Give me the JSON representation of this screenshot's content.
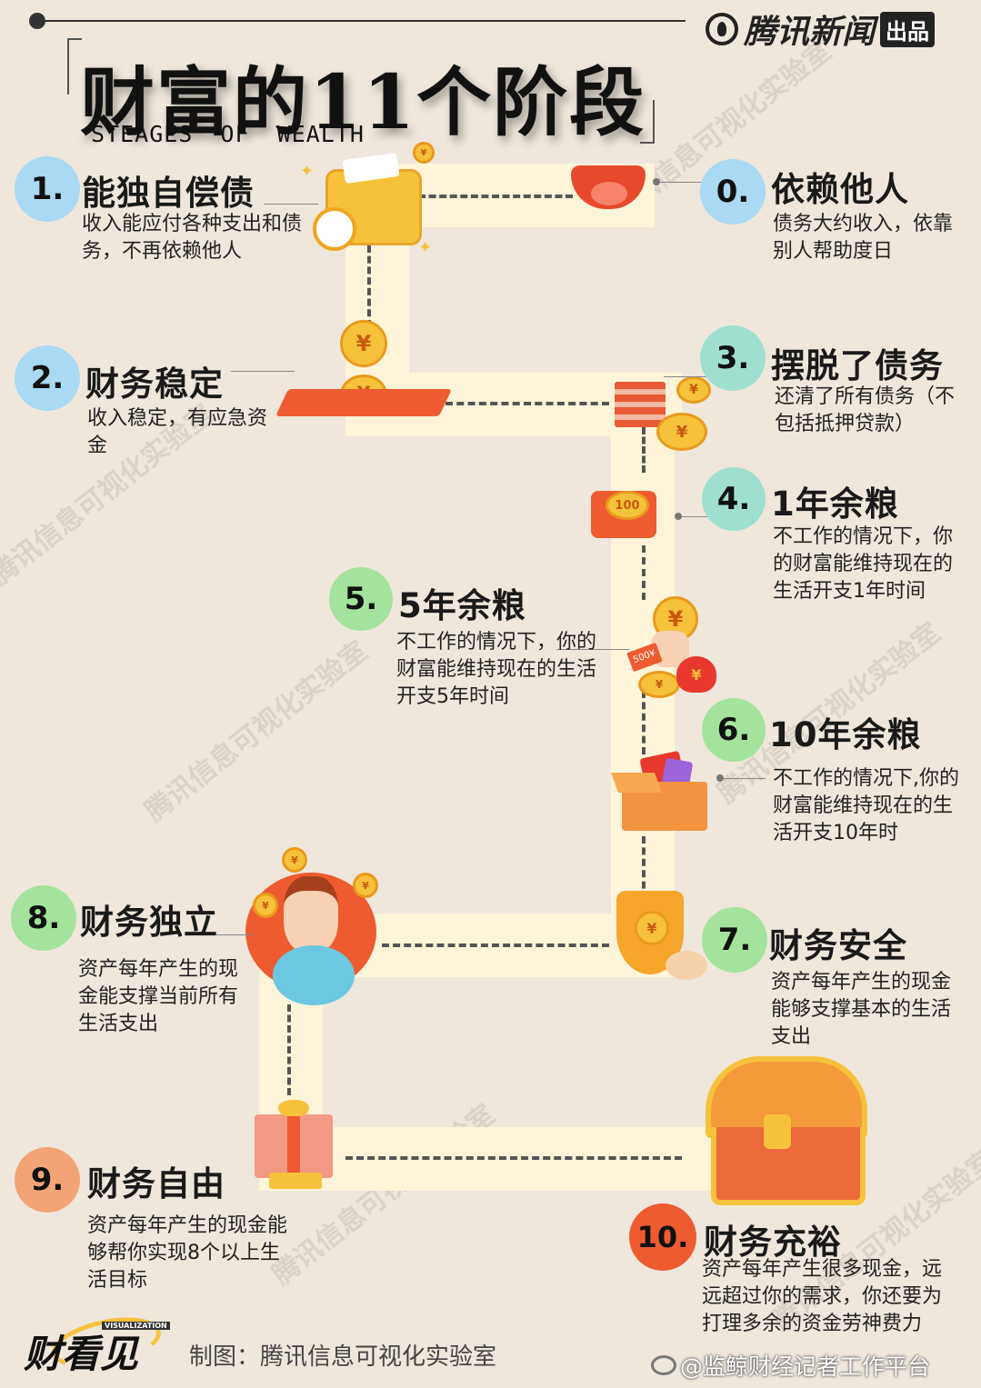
{
  "brand": {
    "name": "腾讯新闻",
    "badge": "出品"
  },
  "title": {
    "main": "财富的11个阶段",
    "sub": "STEAGES OF WEALTH"
  },
  "stages": [
    {
      "num": "0.",
      "title": "依赖他人",
      "desc": "债务大约收入，依靠别人帮助度日"
    },
    {
      "num": "1.",
      "title": "能独自偿债",
      "desc": "收入能应付各种支出和债务，不再依赖他人"
    },
    {
      "num": "2.",
      "title": "财务稳定",
      "desc": "收入稳定，有应急资金"
    },
    {
      "num": "3.",
      "title": "摆脱了债务",
      "desc": "还清了所有债务（不包括抵押贷款）"
    },
    {
      "num": "4.",
      "title": "1年余粮",
      "desc": "不工作的情况下，你的财富能维持现在的生活开支1年时间"
    },
    {
      "num": "5.",
      "title": "5年余粮",
      "desc": "不工作的情况下，你的财富能维持现在的生活开支5年时间"
    },
    {
      "num": "6.",
      "title": "10年余粮",
      "desc": "不工作的情况下,你的财富能维持现在的生活开支10年时"
    },
    {
      "num": "7.",
      "title": "财务安全",
      "desc": "资产每年产生的现金能够支撑基本的生活支出"
    },
    {
      "num": "8.",
      "title": "财务独立",
      "desc": "资产每年产生的现金能支撑当前所有生活支出"
    },
    {
      "num": "9.",
      "title": "财务自由",
      "desc": "资产每年产生的现金能够帮你实现8个以上生活目标"
    },
    {
      "num": "10.",
      "title": "财务充裕",
      "desc": "资产每年产生很多现金，远远超过你的需求，你还要为打理多余的资金劳神费力"
    }
  ],
  "footer": {
    "logo_text": "财看见",
    "logo_sub": "VISUALIZATION",
    "credit": "制图：腾讯信息可视化实验室",
    "weibo": "@监鲸财经记者工作平台"
  },
  "watermark_text": "腾讯信息可视化实验室",
  "icons": {
    "coin_symbol": "¥",
    "gift_label": "100",
    "note_label": "500¥"
  },
  "colors": {
    "background": "#efe7dc",
    "path": "#fdf4d9",
    "gold": "#f6c23b",
    "red": "#ee5b30"
  }
}
